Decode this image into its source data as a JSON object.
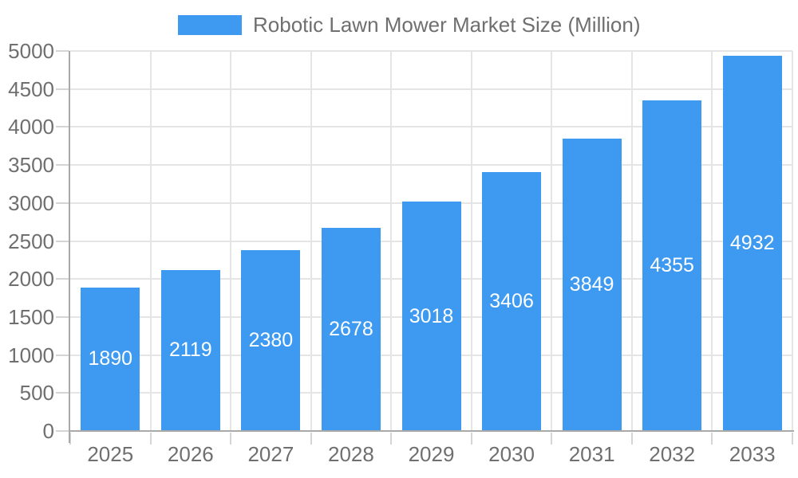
{
  "chart_data": {
    "type": "bar",
    "title": "Robotic Lawn Mower Market Size (Million)",
    "legend_position": "top",
    "categories": [
      "2025",
      "2026",
      "2027",
      "2028",
      "2029",
      "2030",
      "2031",
      "2032",
      "2033"
    ],
    "series": [
      {
        "name": "Robotic Lawn Mower Market Size (Million)",
        "values": [
          1890,
          2119,
          2380,
          2678,
          3018,
          3406,
          3849,
          4355,
          4932
        ]
      }
    ],
    "value_labels_position": "inside-center",
    "xlabel": "",
    "ylabel": "",
    "ylim": [
      0,
      5000
    ],
    "yticks": [
      0,
      500,
      1000,
      1500,
      2000,
      2500,
      3000,
      3500,
      4000,
      4500,
      5000
    ],
    "grid_horizontal": true,
    "grid_vertical": true
  },
  "colors": {
    "bar": "#3d9af0",
    "grid": "#e5e5e5",
    "axis": "#a9a9a9",
    "tick": "#d5d5d5",
    "label_text": "#6f6f6f",
    "title_text": "#6f6f6f",
    "value_label": "#ffffff",
    "background": "#ffffff"
  }
}
